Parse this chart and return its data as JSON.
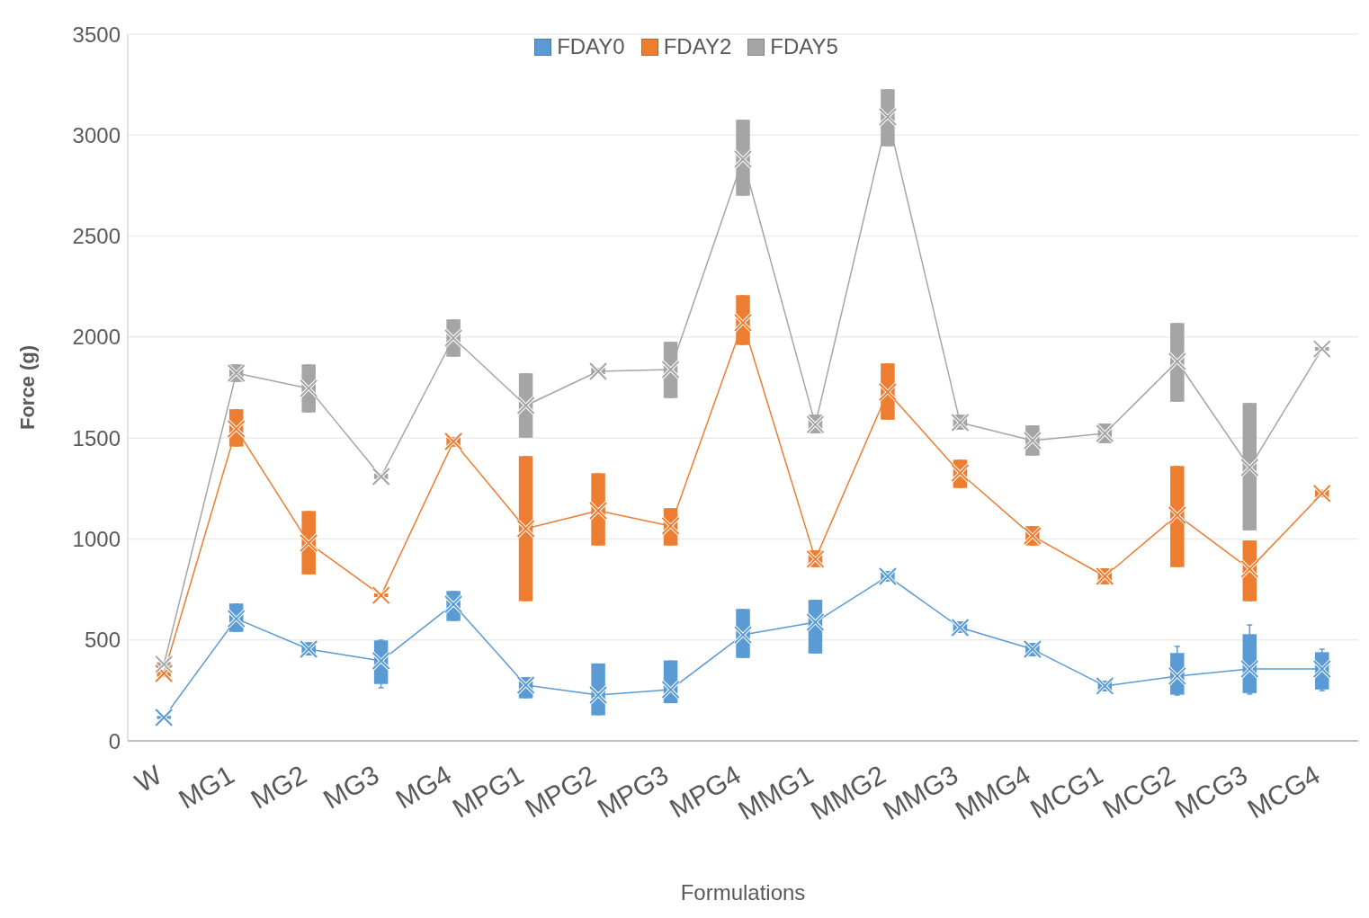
{
  "chart_data": {
    "type": "box",
    "xlabel": "Formulations",
    "ylabel": "Force (g)",
    "legend": "top",
    "grid": "y",
    "marker": "cross",
    "categories": [
      "W",
      "MG1",
      "MG2",
      "MG3",
      "MG4",
      "MPG1",
      "MPG2",
      "MPG3",
      "MPG4",
      "MMG1",
      "MMG2",
      "MMG3",
      "MMG4",
      "MCG1",
      "MCG2",
      "MCG3",
      "MCG4"
    ],
    "ylim": [
      0,
      3500
    ],
    "yticks": [
      0,
      500,
      1000,
      1500,
      2000,
      2500,
      3000,
      3500
    ],
    "series": [
      {
        "name": "FDAY0",
        "color": "#5b9bd5",
        "boxes": [
          {
            "low": 110,
            "q1": 112,
            "median": 116,
            "q3": 120,
            "high": 122
          },
          {
            "low": 543,
            "q1": 543,
            "median": 605,
            "q3": 677,
            "high": 677
          },
          {
            "low": 427,
            "q1": 427,
            "median": 454,
            "q3": 485,
            "high": 485
          },
          {
            "low": 263,
            "q1": 285,
            "median": 396,
            "q3": 494,
            "high": 499
          },
          {
            "low": 597,
            "q1": 597,
            "median": 677,
            "q3": 739,
            "high": 739
          },
          {
            "low": 214,
            "q1": 214,
            "median": 276,
            "q3": 312,
            "high": 312
          },
          {
            "low": 130,
            "q1": 130,
            "median": 227,
            "q3": 380,
            "high": 380
          },
          {
            "low": 190,
            "q1": 190,
            "median": 254,
            "q3": 395,
            "high": 395
          },
          {
            "low": 414,
            "q1": 414,
            "median": 525,
            "q3": 650,
            "high": 650
          },
          {
            "low": 436,
            "q1": 436,
            "median": 588,
            "q3": 695,
            "high": 695
          },
          {
            "low": 793,
            "q1": 793,
            "median": 815,
            "q3": 837,
            "high": 837
          },
          {
            "low": 539,
            "q1": 539,
            "median": 561,
            "q3": 588,
            "high": 588
          },
          {
            "low": 423,
            "q1": 423,
            "median": 454,
            "q3": 481,
            "high": 481
          },
          {
            "low": 249,
            "q1": 249,
            "median": 272,
            "q3": 294,
            "high": 294
          },
          {
            "low": 227,
            "q1": 232,
            "median": 321,
            "q3": 432,
            "high": 468
          },
          {
            "low": 232,
            "q1": 240,
            "median": 356,
            "q3": 525,
            "high": 574
          },
          {
            "low": 249,
            "q1": 258,
            "median": 356,
            "q3": 436,
            "high": 454
          }
        ]
      },
      {
        "name": "FDAY2",
        "color": "#ed7d31",
        "boxes": [
          {
            "low": 321,
            "q1": 321,
            "median": 334,
            "q3": 347,
            "high": 347
          },
          {
            "low": 1461,
            "q1": 1461,
            "median": 1545,
            "q3": 1639,
            "high": 1639
          },
          {
            "low": 828,
            "q1": 828,
            "median": 980,
            "q3": 1135,
            "high": 1135
          },
          {
            "low": 712,
            "q1": 715,
            "median": 721,
            "q3": 727,
            "high": 730
          },
          {
            "low": 1461,
            "q1": 1461,
            "median": 1483,
            "q3": 1501,
            "high": 1501
          },
          {
            "low": 695,
            "q1": 695,
            "median": 1051,
            "q3": 1407,
            "high": 1407
          },
          {
            "low": 971,
            "q1": 971,
            "median": 1140,
            "q3": 1322,
            "high": 1322
          },
          {
            "low": 971,
            "q1": 971,
            "median": 1064,
            "q3": 1149,
            "high": 1149
          },
          {
            "low": 1964,
            "q1": 1964,
            "median": 2071,
            "q3": 2204,
            "high": 2204
          },
          {
            "low": 864,
            "q1": 864,
            "median": 900,
            "q3": 940,
            "high": 940
          },
          {
            "low": 1594,
            "q1": 1594,
            "median": 1728,
            "q3": 1866,
            "high": 1866
          },
          {
            "low": 1256,
            "q1": 1256,
            "median": 1327,
            "q3": 1389,
            "high": 1389
          },
          {
            "low": 971,
            "q1": 971,
            "median": 1015,
            "q3": 1060,
            "high": 1060
          },
          {
            "low": 779,
            "q1": 779,
            "median": 815,
            "q3": 851,
            "high": 851
          },
          {
            "low": 864,
            "q1": 864,
            "median": 1118,
            "q3": 1358,
            "high": 1358
          },
          {
            "low": 695,
            "q1": 695,
            "median": 851,
            "q3": 989,
            "high": 989
          },
          {
            "low": 1210,
            "q1": 1210,
            "median": 1225,
            "q3": 1240,
            "high": 1240
          }
        ]
      },
      {
        "name": "FDAY5",
        "color": "#a5a5a5",
        "boxes": [
          {
            "low": 371,
            "q1": 371,
            "median": 379,
            "q3": 387,
            "high": 387
          },
          {
            "low": 1781,
            "q1": 1781,
            "median": 1821,
            "q3": 1861,
            "high": 1861
          },
          {
            "low": 1630,
            "q1": 1630,
            "median": 1746,
            "q3": 1861,
            "high": 1861
          },
          {
            "low": 1300,
            "q1": 1300,
            "median": 1309,
            "q3": 1320,
            "high": 1320
          },
          {
            "low": 1906,
            "q1": 1906,
            "median": 1995,
            "q3": 2084,
            "high": 2084
          },
          {
            "low": 1505,
            "q1": 1505,
            "median": 1661,
            "q3": 1817,
            "high": 1817
          },
          {
            "low": 1820,
            "q1": 1820,
            "median": 1830,
            "q3": 1845,
            "high": 1845
          },
          {
            "low": 1701,
            "q1": 1701,
            "median": 1839,
            "q3": 1973,
            "high": 1973
          },
          {
            "low": 2703,
            "q1": 2703,
            "median": 2881,
            "q3": 3073,
            "high": 3073
          },
          {
            "low": 1527,
            "q1": 1527,
            "median": 1567,
            "q3": 1612,
            "high": 1612
          },
          {
            "low": 2948,
            "q1": 2948,
            "median": 3090,
            "q3": 3224,
            "high": 3224
          },
          {
            "low": 1545,
            "q1": 1545,
            "median": 1576,
            "q3": 1612,
            "high": 1612
          },
          {
            "low": 1416,
            "q1": 1416,
            "median": 1487,
            "q3": 1559,
            "high": 1559
          },
          {
            "low": 1478,
            "q1": 1478,
            "median": 1523,
            "q3": 1568,
            "high": 1568
          },
          {
            "low": 1683,
            "q1": 1683,
            "median": 1879,
            "q3": 2066,
            "high": 2066
          },
          {
            "low": 1046,
            "q1": 1046,
            "median": 1354,
            "q3": 1670,
            "high": 1670
          },
          {
            "low": 1935,
            "q1": 1935,
            "median": 1941,
            "q3": 1947,
            "high": 1947
          }
        ]
      },
      {
        "type": "line",
        "color": "#5b9bd5",
        "values": [
          116,
          605,
          454,
          396,
          677,
          276,
          227,
          254,
          525,
          588,
          815,
          561,
          454,
          272,
          321,
          356,
          356
        ]
      },
      {
        "type": "line",
        "color": "#ed7d31",
        "values": [
          334,
          1545,
          980,
          721,
          1483,
          1051,
          1140,
          1064,
          2071,
          900,
          1728,
          1327,
          1015,
          815,
          1118,
          851,
          1225
        ]
      },
      {
        "type": "line",
        "color": "#a5a5a5",
        "values": [
          379,
          1821,
          1746,
          1309,
          1995,
          1661,
          1830,
          1839,
          2881,
          1567,
          3090,
          1576,
          1487,
          1523,
          1879,
          1354,
          1941
        ]
      }
    ]
  }
}
